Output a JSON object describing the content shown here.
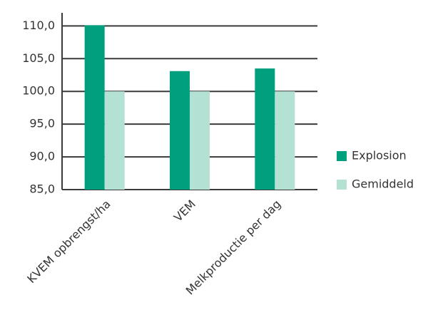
{
  "chart_data": {
    "type": "bar",
    "categories": [
      "KVEM opbrengst/ha",
      "VEM",
      "Melkproductie per dag"
    ],
    "series": [
      {
        "name": "Explosion",
        "color": "#00a07f",
        "values": [
          110.1,
          103.1,
          103.5
        ]
      },
      {
        "name": "Gemiddeld",
        "color": "#b3e1d4",
        "values": [
          100,
          100,
          100
        ]
      }
    ],
    "ylim": [
      85,
      112
    ],
    "yticks": [
      {
        "value": 85,
        "label": "85,0"
      },
      {
        "value": 90,
        "label": "90,0"
      },
      {
        "value": 95,
        "label": "95,0"
      },
      {
        "value": 100,
        "label": "100,0"
      },
      {
        "value": 105,
        "label": "105,0"
      },
      {
        "value": 110,
        "label": "110,0"
      }
    ],
    "grid": true,
    "legend": "right"
  }
}
